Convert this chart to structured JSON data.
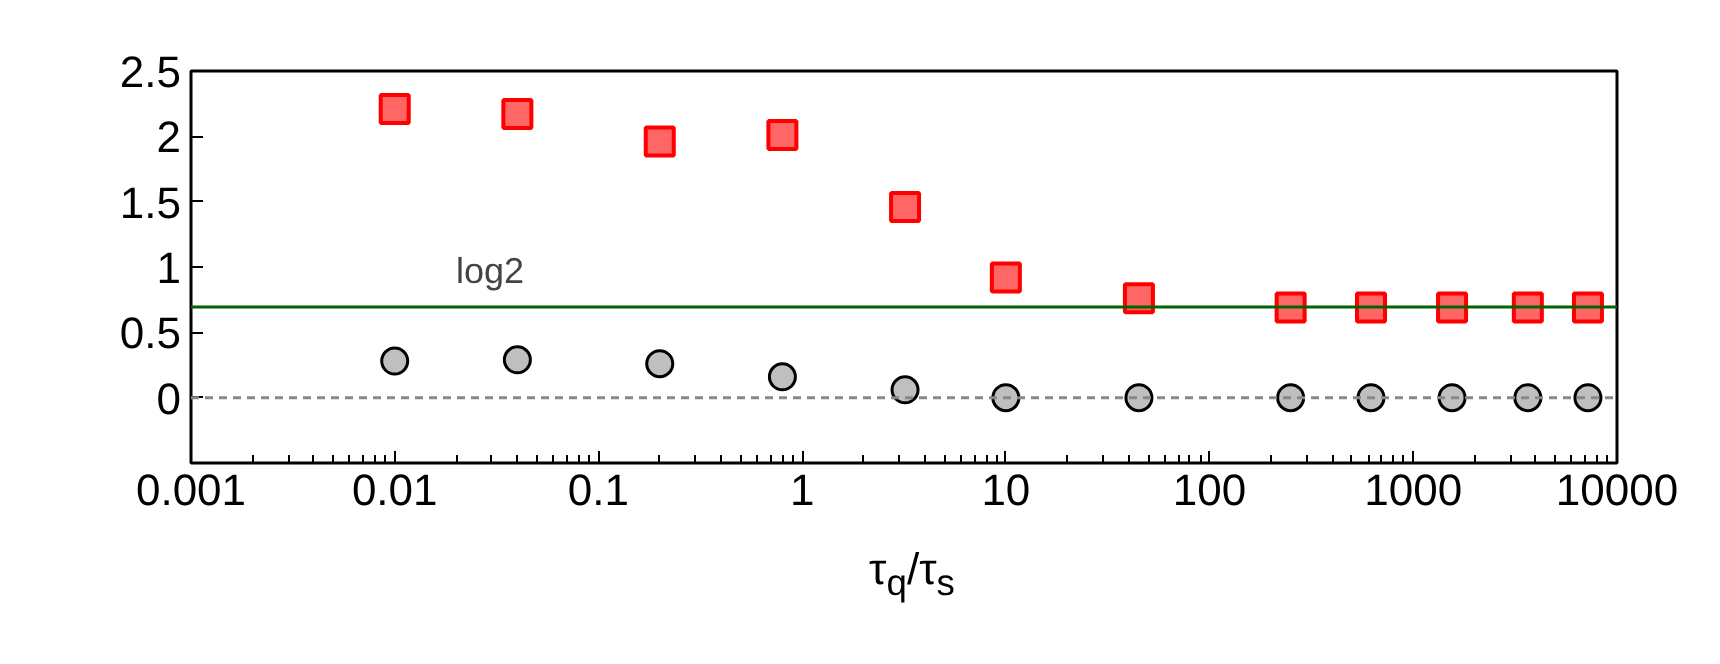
{
  "chart_data": {
    "type": "scatter",
    "xlabel": "τ$_{q}$/τ$_{s}$",
    "x": [
      0.01,
      0.04,
      0.2,
      0.8,
      3.2,
      10,
      45,
      250,
      620,
      1550,
      3650,
      7200
    ],
    "series": [
      {
        "color": "#ff0000",
        "marker": "square",
        "values": [
          2.21,
          2.17,
          1.96,
          2.01,
          1.46,
          0.92,
          0.76,
          0.69,
          0.69,
          0.69,
          0.69,
          0.69
        ]
      },
      {
        "color": "#000000",
        "marker": "circle",
        "values": [
          0.28,
          0.29,
          0.26,
          0.16,
          0.06,
          0,
          0,
          0,
          0,
          0,
          0,
          0
        ]
      }
    ],
    "ref_lines": [
      {
        "axis": "y",
        "value": 0.693,
        "label": "log2",
        "color": "#006400",
        "line_style": "solid"
      },
      {
        "axis": "y",
        "value": 0,
        "color": "#888888",
        "line_style": "dashed"
      }
    ],
    "log": "x",
    "xlim": [
      0.001,
      10000
    ],
    "xticks": [
      0.001,
      0.01,
      0.1,
      1,
      10,
      100,
      1000,
      10000
    ],
    "ylim": [
      -0.5,
      2.5
    ],
    "yticks": [
      0,
      0.5,
      1,
      1.5,
      2,
      2.5
    ],
    "grid": false
  }
}
